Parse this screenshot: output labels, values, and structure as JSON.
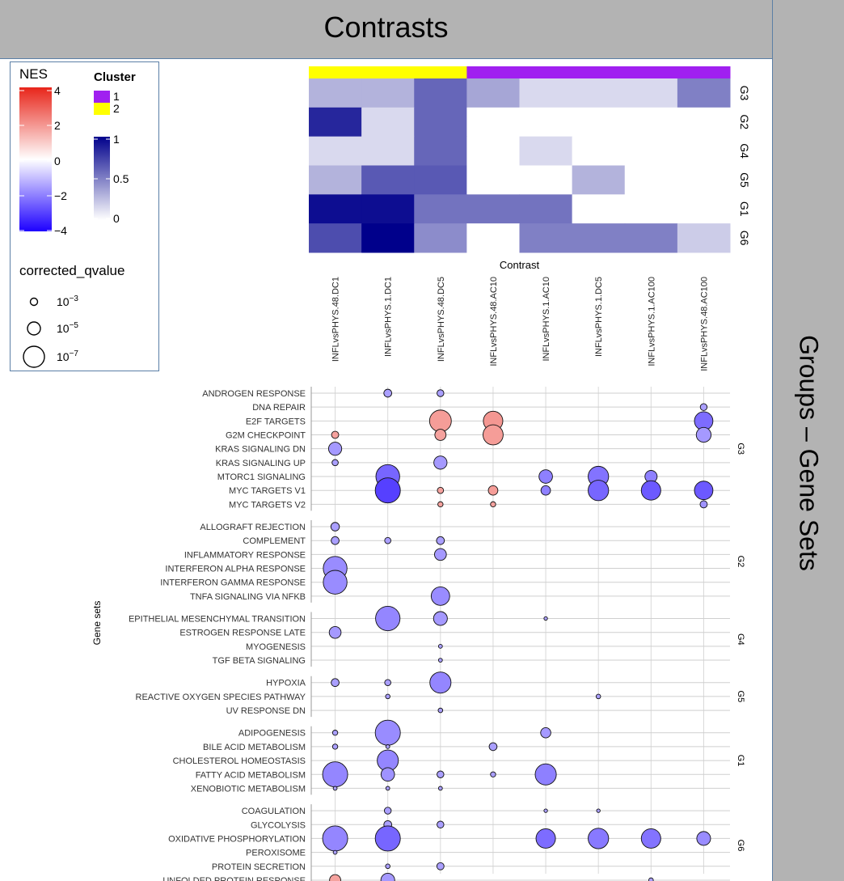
{
  "top_banner": {
    "label": "Contrasts"
  },
  "right_banner": {
    "label": "Groups – Gene Sets"
  },
  "legend": {
    "nes_title": "NES",
    "nes_ticks": [
      "4",
      "2",
      "0",
      "−2",
      "−4"
    ],
    "nes_colors": [
      "#e8251a",
      "#ffffff",
      "#1d00ff"
    ],
    "cluster_title": "Cluster",
    "cluster_items": [
      {
        "label": "1",
        "color": "#a020f0"
      },
      {
        "label": "2",
        "color": "#ffff00"
      }
    ],
    "score_ticks": [
      "1",
      "0.5",
      "0"
    ],
    "score_colors": [
      "#ffffff",
      "#00008b"
    ],
    "size_title": "corrected_qvalue",
    "size_items": [
      {
        "base": "10",
        "exp": "−3"
      },
      {
        "base": "10",
        "exp": "−5"
      },
      {
        "base": "10",
        "exp": "−7"
      }
    ]
  },
  "chart_data": [
    {
      "type": "heatmap",
      "x_label": "Contrast",
      "contrasts": [
        "INFLvsPHYS.48.DC1",
        "INFLvsPHYS.1.DC1",
        "INFLvsPHYS.48.DC5",
        "INFLvsPHYS.48.AC10",
        "INFLvsPHYS.1.AC10",
        "INFLvsPHYS.1.DC5",
        "INFLvsPHYS.1.AC100",
        "INFLvsPHYS.48.AC100"
      ],
      "clusters": [
        2,
        2,
        2,
        1,
        1,
        1,
        1,
        1
      ],
      "groups": [
        "G3",
        "G2",
        "G4",
        "G5",
        "G1",
        "G6"
      ],
      "values": [
        [
          0.3,
          0.3,
          0.6,
          0.35,
          0.15,
          0.15,
          0.15,
          0.5
        ],
        [
          0.85,
          0.15,
          0.6,
          0,
          0,
          0,
          0,
          0
        ],
        [
          0.15,
          0.15,
          0.6,
          0,
          0.15,
          0,
          0,
          0
        ],
        [
          0.3,
          0.65,
          0.65,
          0,
          0,
          0.3,
          0,
          0
        ],
        [
          0.95,
          0.95,
          0.55,
          0.55,
          0.55,
          0,
          0,
          0
        ],
        [
          0.7,
          1.0,
          0.45,
          0,
          0.5,
          0.5,
          0.5,
          0.2
        ]
      ]
    },
    {
      "type": "scatter",
      "y_label": "Gene sets",
      "size_variable": "corrected_qvalue",
      "color_variable": "NES",
      "groups": [
        {
          "name": "G3",
          "gene_sets": [
            "ANDROGEN RESPONSE",
            "DNA REPAIR",
            "E2F TARGETS",
            "G2M CHECKPOINT",
            "KRAS SIGNALING DN",
            "KRAS SIGNALING UP",
            "MTORC1 SIGNALING",
            "MYC TARGETS V1",
            "MYC TARGETS V2"
          ]
        },
        {
          "name": "G2",
          "gene_sets": [
            "ALLOGRAFT REJECTION",
            "COMPLEMENT",
            "INFLAMMATORY RESPONSE",
            "INTERFERON ALPHA RESPONSE",
            "INTERFERON GAMMA RESPONSE",
            "TNFA SIGNALING VIA NFKB"
          ]
        },
        {
          "name": "G4",
          "gene_sets": [
            "EPITHELIAL MESENCHYMAL TRANSITION",
            "ESTROGEN RESPONSE LATE",
            "MYOGENESIS",
            "TGF BETA SIGNALING"
          ]
        },
        {
          "name": "G5",
          "gene_sets": [
            "HYPOXIA",
            "REACTIVE OXYGEN SPECIES PATHWAY",
            "UV RESPONSE DN"
          ]
        },
        {
          "name": "G1",
          "gene_sets": [
            "ADIPOGENESIS",
            "BILE ACID METABOLISM",
            "CHOLESTEROL HOMEOSTASIS",
            "FATTY ACID METABOLISM",
            "XENOBIOTIC METABOLISM"
          ]
        },
        {
          "name": "G6",
          "gene_sets": [
            "COAGULATION",
            "GLYCOLYSIS",
            "OXIDATIVE PHOSPHORYLATION",
            "PEROXISOME",
            "PROTEIN SECRETION",
            "UNFOLDED PROTEIN RESPONSE"
          ]
        }
      ],
      "points": [
        {
          "set": "ANDROGEN RESPONSE",
          "c": 1,
          "q": 2.8,
          "nes": -1.5
        },
        {
          "set": "ANDROGEN RESPONSE",
          "c": 2,
          "q": 2.5,
          "nes": -1.5
        },
        {
          "set": "DNA REPAIR",
          "c": 7,
          "q": 2.5,
          "nes": -1.5
        },
        {
          "set": "E2F TARGETS",
          "c": 2,
          "q": 7.0,
          "nes": 1.8
        },
        {
          "set": "E2F TARGETS",
          "c": 3,
          "q": 6.3,
          "nes": 1.9
        },
        {
          "set": "E2F TARGETS",
          "c": 7,
          "q": 6.0,
          "nes": -2.3
        },
        {
          "set": "G2M CHECKPOINT",
          "c": 0,
          "q": 2.6,
          "nes": 1.7
        },
        {
          "set": "G2M CHECKPOINT",
          "c": 2,
          "q": 3.8,
          "nes": 1.7
        },
        {
          "set": "G2M CHECKPOINT",
          "c": 3,
          "q": 6.5,
          "nes": 1.8
        },
        {
          "set": "G2M CHECKPOINT",
          "c": 7,
          "q": 4.9,
          "nes": -1.6
        },
        {
          "set": "KRAS SIGNALING DN",
          "c": 0,
          "q": 4.4,
          "nes": -1.6
        },
        {
          "set": "KRAS SIGNALING UP",
          "c": 0,
          "q": 2.3,
          "nes": -1.5
        },
        {
          "set": "KRAS SIGNALING UP",
          "c": 2,
          "q": 4.4,
          "nes": -1.6
        },
        {
          "set": "MTORC1 SIGNALING",
          "c": 1,
          "q": 7.6,
          "nes": -2.4
        },
        {
          "set": "MTORC1 SIGNALING",
          "c": 4,
          "q": 4.5,
          "nes": -2.0
        },
        {
          "set": "MTORC1 SIGNALING",
          "c": 5,
          "q": 6.6,
          "nes": -2.2
        },
        {
          "set": "MTORC1 SIGNALING",
          "c": 6,
          "q": 4.1,
          "nes": -2.0
        },
        {
          "set": "MYC TARGETS V1",
          "c": 1,
          "q": 8.0,
          "nes": -3.0
        },
        {
          "set": "MYC TARGETS V1",
          "c": 2,
          "q": 2.3,
          "nes": 1.7
        },
        {
          "set": "MYC TARGETS V1",
          "c": 3,
          "q": 3.3,
          "nes": 1.8
        },
        {
          "set": "MYC TARGETS V1",
          "c": 4,
          "q": 3.3,
          "nes": -2.0
        },
        {
          "set": "MYC TARGETS V1",
          "c": 5,
          "q": 6.6,
          "nes": -2.4
        },
        {
          "set": "MYC TARGETS V1",
          "c": 6,
          "q": 6.3,
          "nes": -2.6
        },
        {
          "set": "MYC TARGETS V1",
          "c": 7,
          "q": 6.0,
          "nes": -2.6
        },
        {
          "set": "MYC TARGETS V2",
          "c": 2,
          "q": 2.0,
          "nes": 1.7
        },
        {
          "set": "MYC TARGETS V2",
          "c": 3,
          "q": 2.0,
          "nes": 1.7
        },
        {
          "set": "MYC TARGETS V2",
          "c": 7,
          "q": 2.6,
          "nes": -1.7
        },
        {
          "set": "ALLOGRAFT REJECTION",
          "c": 0,
          "q": 3.0,
          "nes": -1.5
        },
        {
          "set": "COMPLEMENT",
          "c": 0,
          "q": 2.8,
          "nes": -1.5
        },
        {
          "set": "COMPLEMENT",
          "c": 1,
          "q": 2.3,
          "nes": -1.5
        },
        {
          "set": "COMPLEMENT",
          "c": 2,
          "q": 2.8,
          "nes": -1.5
        },
        {
          "set": "INFLAMMATORY RESPONSE",
          "c": 2,
          "q": 4.0,
          "nes": -1.6
        },
        {
          "set": "INTERFERON ALPHA RESPONSE",
          "c": 0,
          "q": 7.6,
          "nes": -1.8
        },
        {
          "set": "INTERFERON GAMMA RESPONSE",
          "c": 0,
          "q": 7.6,
          "nes": -1.8
        },
        {
          "set": "TNFA SIGNALING VIA NFKB",
          "c": 2,
          "q": 6.0,
          "nes": -1.8
        },
        {
          "set": "EPITHELIAL MESENCHYMAL TRANSITION",
          "c": 1,
          "q": 7.8,
          "nes": -1.9
        },
        {
          "set": "EPITHELIAL MESENCHYMAL TRANSITION",
          "c": 2,
          "q": 4.6,
          "nes": -1.6
        },
        {
          "set": "EPITHELIAL MESENCHYMAL TRANSITION",
          "c": 4,
          "q": 1.5,
          "nes": -1.5
        },
        {
          "set": "ESTROGEN RESPONSE LATE",
          "c": 0,
          "q": 4.0,
          "nes": -1.6
        },
        {
          "set": "MYOGENESIS",
          "c": 2,
          "q": 1.6,
          "nes": -1.5
        },
        {
          "set": "TGF BETA SIGNALING",
          "c": 2,
          "q": 1.6,
          "nes": -1.5
        },
        {
          "set": "HYPOXIA",
          "c": 0,
          "q": 2.8,
          "nes": -1.5
        },
        {
          "set": "HYPOXIA",
          "c": 1,
          "q": 2.3,
          "nes": -1.5
        },
        {
          "set": "HYPOXIA",
          "c": 2,
          "q": 6.8,
          "nes": -1.9
        },
        {
          "set": "REACTIVE OXYGEN SPECIES PATHWAY",
          "c": 1,
          "q": 1.8,
          "nes": -1.5
        },
        {
          "set": "REACTIVE OXYGEN SPECIES PATHWAY",
          "c": 5,
          "q": 1.8,
          "nes": -1.5
        },
        {
          "set": "UV RESPONSE DN",
          "c": 2,
          "q": 1.8,
          "nes": -1.5
        },
        {
          "set": "ADIPOGENESIS",
          "c": 0,
          "q": 2.0,
          "nes": -1.5
        },
        {
          "set": "ADIPOGENESIS",
          "c": 1,
          "q": 8.0,
          "nes": -1.8
        },
        {
          "set": "ADIPOGENESIS",
          "c": 4,
          "q": 3.5,
          "nes": -1.6
        },
        {
          "set": "BILE ACID METABOLISM",
          "c": 0,
          "q": 2.0,
          "nes": -1.5
        },
        {
          "set": "BILE ACID METABOLISM",
          "c": 1,
          "q": 1.6,
          "nes": -1.5
        },
        {
          "set": "BILE ACID METABOLISM",
          "c": 3,
          "q": 2.8,
          "nes": -1.5
        },
        {
          "set": "CHOLESTEROL HOMEOSTASIS",
          "c": 1,
          "q": 6.8,
          "nes": -1.9
        },
        {
          "set": "FATTY ACID METABOLISM",
          "c": 0,
          "q": 8.0,
          "nes": -1.9
        },
        {
          "set": "FATTY ACID METABOLISM",
          "c": 1,
          "q": 4.5,
          "nes": -1.7
        },
        {
          "set": "FATTY ACID METABOLISM",
          "c": 2,
          "q": 2.5,
          "nes": -1.5
        },
        {
          "set": "FATTY ACID METABOLISM",
          "c": 3,
          "q": 2.0,
          "nes": -1.5
        },
        {
          "set": "FATTY ACID METABOLISM",
          "c": 4,
          "q": 6.8,
          "nes": -2.0
        },
        {
          "set": "XENOBIOTIC METABOLISM",
          "c": 0,
          "q": 1.6,
          "nes": -1.5
        },
        {
          "set": "XENOBIOTIC METABOLISM",
          "c": 1,
          "q": 1.6,
          "nes": -1.5
        },
        {
          "set": "XENOBIOTIC METABOLISM",
          "c": 2,
          "q": 1.6,
          "nes": -1.5
        },
        {
          "set": "COAGULATION",
          "c": 1,
          "q": 2.5,
          "nes": -1.5
        },
        {
          "set": "COAGULATION",
          "c": 4,
          "q": 1.5,
          "nes": -1.5
        },
        {
          "set": "COAGULATION",
          "c": 5,
          "q": 1.5,
          "nes": -1.5
        },
        {
          "set": "GLYCOLYSIS",
          "c": 1,
          "q": 2.8,
          "nes": -1.5
        },
        {
          "set": "GLYCOLYSIS",
          "c": 2,
          "q": 2.5,
          "nes": -1.5
        },
        {
          "set": "OXIDATIVE PHOSPHORYLATION",
          "c": 0,
          "q": 8.0,
          "nes": -1.9
        },
        {
          "set": "OXIDATIVE PHOSPHORYLATION",
          "c": 1,
          "q": 8.0,
          "nes": -2.4
        },
        {
          "set": "OXIDATIVE PHOSPHORYLATION",
          "c": 4,
          "q": 6.3,
          "nes": -2.3
        },
        {
          "set": "OXIDATIVE PHOSPHORYLATION",
          "c": 5,
          "q": 6.6,
          "nes": -2.1
        },
        {
          "set": "OXIDATIVE PHOSPHORYLATION",
          "c": 6,
          "q": 6.3,
          "nes": -2.2
        },
        {
          "set": "OXIDATIVE PHOSPHORYLATION",
          "c": 7,
          "q": 4.6,
          "nes": -1.8
        },
        {
          "set": "PEROXISOME",
          "c": 0,
          "q": 1.6,
          "nes": -1.5
        },
        {
          "set": "PROTEIN SECRETION",
          "c": 1,
          "q": 1.8,
          "nes": -1.5
        },
        {
          "set": "PROTEIN SECRETION",
          "c": 2,
          "q": 2.6,
          "nes": -1.5
        },
        {
          "set": "UNFOLDED PROTEIN RESPONSE",
          "c": 0,
          "q": 3.8,
          "nes": 1.7
        },
        {
          "set": "UNFOLDED PROTEIN RESPONSE",
          "c": 1,
          "q": 4.6,
          "nes": -1.6
        },
        {
          "set": "UNFOLDED PROTEIN RESPONSE",
          "c": 6,
          "q": 1.8,
          "nes": -1.5
        }
      ]
    }
  ]
}
